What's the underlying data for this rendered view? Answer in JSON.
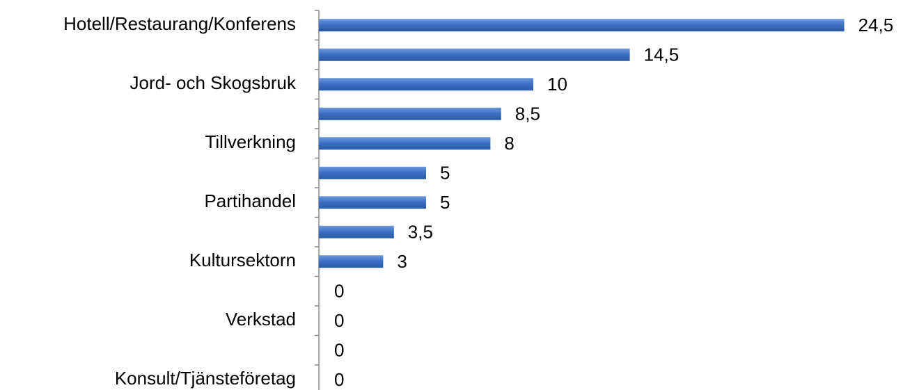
{
  "chart_data": {
    "type": "bar",
    "orientation": "horizontal",
    "categories": [
      "Hotell/Restaurang/Konferens",
      null,
      "Jord- och Skogsbruk",
      null,
      "Tillverkning",
      null,
      "Partihandel",
      null,
      "Kultursektorn",
      null,
      "Verkstad",
      null,
      "Konsult/Tjänsteföretag"
    ],
    "values": [
      24.5,
      14.5,
      10,
      8.5,
      8,
      5,
      5,
      3.5,
      3,
      0,
      0,
      0,
      0
    ],
    "value_labels": [
      "24,5",
      "14,5",
      "10",
      "8,5",
      "8",
      "5",
      "5",
      "3,5",
      "3",
      "0",
      "0",
      "0",
      "0"
    ],
    "color": "#3b6fc2",
    "xlim": [
      0,
      25
    ]
  }
}
